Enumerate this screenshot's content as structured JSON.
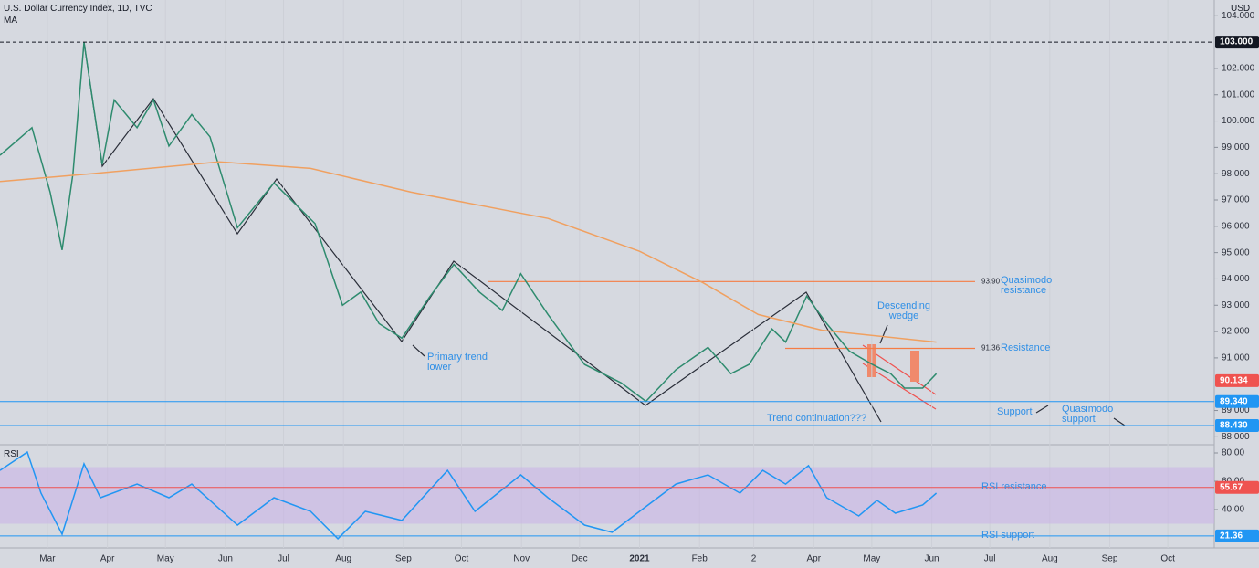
{
  "chart_data": [
    {
      "type": "line",
      "title": "U.S. Dollar Currency Index, 1D, TVC",
      "indicator": "MA",
      "currency": "USD",
      "xlim": [
        -24.5,
        603
      ],
      "xticks": [
        {
          "value": 0,
          "label": "Mar"
        },
        {
          "value": 31,
          "label": "Apr"
        },
        {
          "value": 61,
          "label": "May"
        },
        {
          "value": 92,
          "label": "Jun"
        },
        {
          "value": 122,
          "label": "Jul"
        },
        {
          "value": 153,
          "label": "Aug"
        },
        {
          "value": 184,
          "label": "Sep"
        },
        {
          "value": 214,
          "label": "Oct"
        },
        {
          "value": 245,
          "label": "Nov"
        },
        {
          "value": 275,
          "label": "Dec"
        },
        {
          "value": 306,
          "label": "2021"
        },
        {
          "value": 337,
          "label": "Feb"
        },
        {
          "value": 365,
          "label": "2"
        },
        {
          "value": 396,
          "label": "Apr"
        },
        {
          "value": 426,
          "label": "May"
        },
        {
          "value": 457,
          "label": "Jun"
        },
        {
          "value": 487,
          "label": "Jul"
        },
        {
          "value": 518,
          "label": "Aug"
        },
        {
          "value": 549,
          "label": "Sep"
        },
        {
          "value": 579,
          "label": "Oct"
        }
      ],
      "ylim": [
        87.7,
        104.6
      ],
      "yticks": [
        {
          "value": 88,
          "label": "88.000"
        },
        {
          "value": 89,
          "label": "89.000"
        },
        {
          "value": 91,
          "label": "91.000"
        },
        {
          "value": 92,
          "label": "92.000"
        },
        {
          "value": 93,
          "label": "93.000"
        },
        {
          "value": 94,
          "label": "94.000"
        },
        {
          "value": 95,
          "label": "95.000"
        },
        {
          "value": 96,
          "label": "96.000"
        },
        {
          "value": 97,
          "label": "97.000"
        },
        {
          "value": 98,
          "label": "98.000"
        },
        {
          "value": 99,
          "label": "99.000"
        },
        {
          "value": 100,
          "label": "100.000"
        },
        {
          "value": 101,
          "label": "101.000"
        },
        {
          "value": 102,
          "label": "102.000"
        },
        {
          "value": 104,
          "label": "104.000"
        }
      ],
      "series": [
        {
          "color": "#2e8b6e",
          "x": [
            -24.5,
            -8.0,
            1.4,
            7.6,
            13.2,
            18.9,
            28.3,
            34.5,
            46.3,
            54.8,
            62.8,
            74.6,
            84.0,
            98.2,
            117.1,
            138.3,
            152.5,
            161.9,
            171.4,
            183.2,
            197.4,
            210.1,
            223.3,
            235.1,
            244.6,
            258.7,
            277.6,
            296.5,
            309.3,
            324.8,
            341.4,
            353.2,
            362.6,
            374.4,
            381.5,
            392.4,
            402.7,
            414.5,
            426.3,
            435.8,
            442.9,
            452.3,
            459.4
          ],
          "values": [
            98.7,
            99.75,
            97.3,
            95.1,
            98.0,
            103.0,
            98.35,
            100.8,
            99.75,
            100.8,
            99.05,
            100.25,
            99.4,
            95.95,
            97.65,
            96.1,
            93.0,
            93.5,
            92.3,
            91.75,
            93.3,
            94.55,
            93.5,
            92.8,
            94.2,
            92.65,
            90.75,
            90.05,
            89.35,
            90.55,
            91.4,
            90.4,
            90.75,
            92.1,
            91.6,
            93.35,
            92.3,
            91.25,
            90.75,
            90.4,
            89.85,
            89.85,
            90.4
          ]
        },
        {
          "color": "#f0a060",
          "x": [
            -24.5,
            22.7,
            88.7,
            136.0,
            187.9,
            258.7,
            306.0,
            339.0,
            367.3,
            400.3,
            459.4
          ],
          "values": [
            97.7,
            98.0,
            98.45,
            98.2,
            97.3,
            96.3,
            95.05,
            93.85,
            92.65,
            92.05,
            91.6
          ]
        }
      ],
      "levels": [
        {
          "value": 103,
          "label": "103.000",
          "color": "#131722",
          "line": true,
          "dashed": true
        },
        {
          "value": 90.134,
          "label": "90.134",
          "color": "#ef5350",
          "line": false,
          "dashed": false
        },
        {
          "value": 89.34,
          "label": "89.340",
          "color": "#2196f3",
          "line": true,
          "dashed": false
        },
        {
          "value": 88.43,
          "label": "88.430",
          "color": "#2196f3",
          "line": true,
          "dashed": false
        }
      ],
      "zones": [
        {
          "value": 93.9,
          "label": "93.90",
          "text": "Quasimodo resistance",
          "color": "#f57c45"
        },
        {
          "value": 91.36,
          "label": "91.36",
          "text": "Resistance",
          "color": "#f57c45"
        }
      ],
      "annotations": [
        "Descending wedge",
        "Primary trend lower",
        "Trend continuation???",
        "Support",
        "Quasimodo support"
      ]
    },
    {
      "type": "line",
      "title": "RSI",
      "xlim": [
        -24.5,
        603
      ],
      "ylim": [
        12.9,
        85.8
      ],
      "yticks": [
        {
          "value": 80,
          "label": "80.00"
        },
        {
          "value": 60,
          "label": "60.00"
        },
        {
          "value": 40,
          "label": "40.00"
        }
      ],
      "band": [
        30,
        70
      ],
      "band_color": "#c9b4e6",
      "series": [
        {
          "color": "#2196f3",
          "x": [
            -24.5,
            -10.4,
            -3.3,
            7.6,
            18.9,
            27.4,
            46.3,
            62.8,
            74.6,
            98.2,
            117.1,
            136.0,
            150.1,
            164.3,
            183.2,
            206.8,
            221.0,
            244.6,
            258.7,
            277.6,
            291.8,
            306.0,
            324.8,
            341.4,
            357.9,
            369.7,
            381.5,
            393.3,
            402.7,
            419.3,
            428.7,
            438.2,
            452.3,
            459.4
          ],
          "values": [
            67.7,
            80.6,
            51.6,
            22.6,
            72.3,
            48.4,
            58,
            48.4,
            58,
            29,
            48.4,
            38.7,
            19.4,
            38.7,
            32.3,
            67.7,
            38.7,
            64.5,
            48.4,
            29,
            23.9,
            38.7,
            58,
            64.5,
            51.6,
            67.7,
            58,
            71,
            48.4,
            35.5,
            46.5,
            37.4,
            43.2,
            51.6
          ]
        }
      ],
      "levels": [
        {
          "value": 55.67,
          "label": "55.67",
          "text": "RSI resistance",
          "color": "#ef5350"
        },
        {
          "value": 21.36,
          "label": "21.36",
          "text": "RSI support",
          "color": "#2196f3"
        }
      ]
    }
  ]
}
